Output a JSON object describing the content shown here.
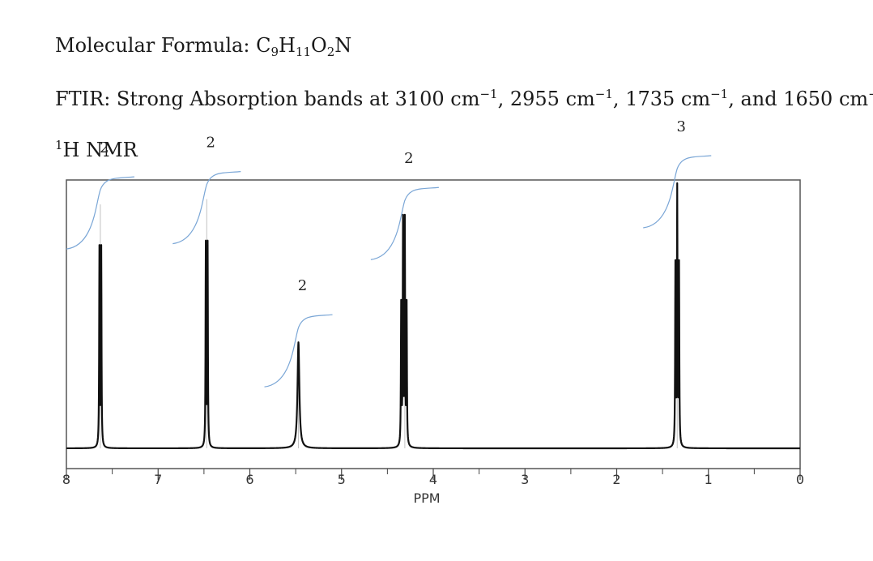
{
  "text": {
    "formula_label": "Molecular Formula: ",
    "formula_parts": {
      "c": "C",
      "c_n": "9",
      "h": "H",
      "h_n": "11",
      "o": "O",
      "o_n": "2",
      "n": "N"
    },
    "ftir_prefix": "FTIR: Strong Absorption bands at ",
    "ftir_bands": [
      "3100",
      "2955",
      "1735",
      "1650"
    ],
    "unit": "cm",
    "unit_exp": "−1",
    "sep1": ", ",
    "sep2": ", ",
    "sep3": ", and ",
    "nmr_sup": "1",
    "nmr_title": "H NMR"
  },
  "colors": {
    "spectrum": "#111111",
    "frame": "#555555",
    "integral": "#7aa6d6"
  },
  "chart_data": {
    "type": "line",
    "xlabel": "PPM",
    "xlim": [
      8,
      0
    ],
    "xticks": [
      8,
      7,
      6,
      5,
      4,
      3,
      2,
      1,
      0
    ],
    "peaks": [
      {
        "ppm": 7.63,
        "height": 0.92,
        "lines": [
          7.64,
          7.62
        ],
        "integral": "2"
      },
      {
        "ppm": 6.47,
        "height": 0.94,
        "lines": [
          6.48,
          6.46
        ],
        "integral": "2"
      },
      {
        "ppm": 5.47,
        "height": 0.4,
        "lines": [
          5.47
        ],
        "integral": "2"
      },
      {
        "ppm": 4.31,
        "height": 0.88,
        "lines": [
          4.35,
          4.33,
          4.31,
          4.29
        ],
        "integral": "2"
      },
      {
        "ppm": 1.34,
        "height": 1.0,
        "lines": [
          1.36,
          1.34,
          1.32
        ],
        "integral": "3"
      }
    ]
  }
}
